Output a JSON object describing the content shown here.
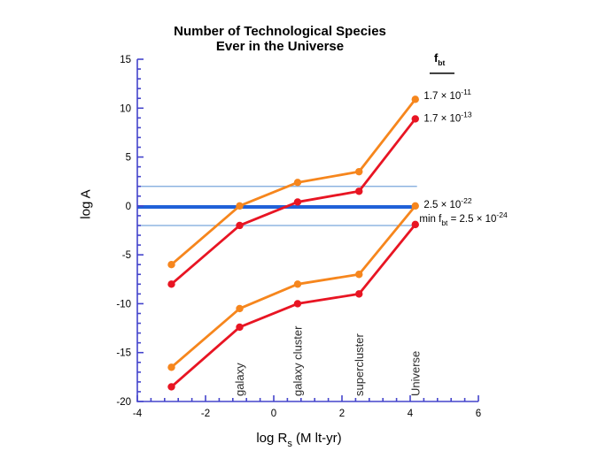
{
  "title": {
    "line1": "Number of Technological Species",
    "line2": "Ever in the Universe"
  },
  "axis_labels": {
    "y": "log A",
    "x_segments": [
      {
        "t": "log R"
      },
      {
        "t": "s",
        "style": "sub"
      },
      {
        "t": " (M lt-yr)"
      }
    ]
  },
  "colors": {
    "axis": "#4444cc",
    "orange_series": "#f6861d",
    "red_series": "#e81523",
    "reference_thick": "#2061d8",
    "reference_thin": "#79a6dc",
    "text": "#000000",
    "category_label": "#2b2b2b",
    "background": "#ffffff"
  },
  "chart_data": {
    "type": "line",
    "title": "Number of Technological Species Ever in the Universe",
    "xlabel": "log Rs (M lt-yr)",
    "ylabel": "log A",
    "xlim": [
      -4,
      6
    ],
    "ylim": [
      -20,
      15
    ],
    "xticks": [
      -4,
      -2,
      0,
      2,
      4,
      6
    ],
    "yticks": [
      -20,
      -15,
      -10,
      -5,
      0,
      5,
      10,
      15
    ],
    "x_minor_step": 0.4,
    "y_minor_step": 1,
    "grid": false,
    "legend_position": "right",
    "series": [
      {
        "name": "f_bt = 1.7x10^-11",
        "color": "orange_series",
        "points": [
          [
            -3,
            -6
          ],
          [
            -1,
            0
          ],
          [
            0.7,
            2.4
          ],
          [
            2.5,
            3.5
          ],
          [
            4.15,
            10.9
          ]
        ]
      },
      {
        "name": "f_bt = 1.7x10^-13",
        "color": "red_series",
        "points": [
          [
            -3,
            -8
          ],
          [
            -1,
            -2
          ],
          [
            0.7,
            0.4
          ],
          [
            2.5,
            1.5
          ],
          [
            4.15,
            8.9
          ]
        ]
      },
      {
        "name": "f_bt = 2.5x10^-22",
        "color": "orange_series",
        "points": [
          [
            -3,
            -16.5
          ],
          [
            -1,
            -10.5
          ],
          [
            0.7,
            -8
          ],
          [
            2.5,
            -7
          ],
          [
            4.15,
            0
          ]
        ]
      },
      {
        "name": "min f_bt = 2.5x10^-24",
        "color": "red_series",
        "points": [
          [
            -3,
            -18.5
          ],
          [
            -1,
            -12.4
          ],
          [
            0.7,
            -10
          ],
          [
            2.5,
            -9
          ],
          [
            4.15,
            -1.9
          ]
        ]
      }
    ],
    "reference_lines": [
      {
        "y": 2,
        "x_from": -4,
        "x_to": 4.2,
        "weight": "thin"
      },
      {
        "y": -0.1,
        "x_from": -4,
        "x_to": 4.05,
        "weight": "thick"
      },
      {
        "y": -2,
        "x_from": -4,
        "x_to": 4.1,
        "weight": "thin"
      }
    ],
    "category_markers": [
      {
        "label": "galaxy",
        "x": -1
      },
      {
        "label": "galaxy cluster",
        "x": 0.7
      },
      {
        "label": "supercluster",
        "x": 2.5
      },
      {
        "label": "Universe",
        "x": 4.15
      }
    ],
    "annotations": [
      {
        "name": "legend-header-fbt",
        "x": 4.7,
        "y": 15.1,
        "bold": true,
        "underline": true,
        "segments": [
          {
            "t": "f"
          },
          {
            "t": "bt",
            "style": "sub"
          }
        ]
      },
      {
        "name": "label-1p7e-11",
        "x": 4.4,
        "y": 11.3,
        "segments": [
          {
            "t": "1.7 × 10"
          },
          {
            "t": "-11",
            "style": "sup"
          }
        ]
      },
      {
        "name": "label-1p7e-13",
        "x": 4.4,
        "y": 9.0,
        "segments": [
          {
            "t": "1.7 × 10"
          },
          {
            "t": "-13",
            "style": "sup"
          }
        ]
      },
      {
        "name": "label-2p5e-22",
        "x": 4.4,
        "y": 0.15,
        "segments": [
          {
            "t": "2.5 × 10"
          },
          {
            "t": "-22",
            "style": "sup"
          }
        ]
      },
      {
        "name": "label-min-fbt",
        "x": 4.27,
        "y": -1.3,
        "segments": [
          {
            "t": "min f"
          },
          {
            "t": "bt",
            "style": "sub"
          },
          {
            "t": " = 2.5 × 10"
          },
          {
            "t": "-24",
            "style": "sup"
          }
        ]
      }
    ]
  }
}
